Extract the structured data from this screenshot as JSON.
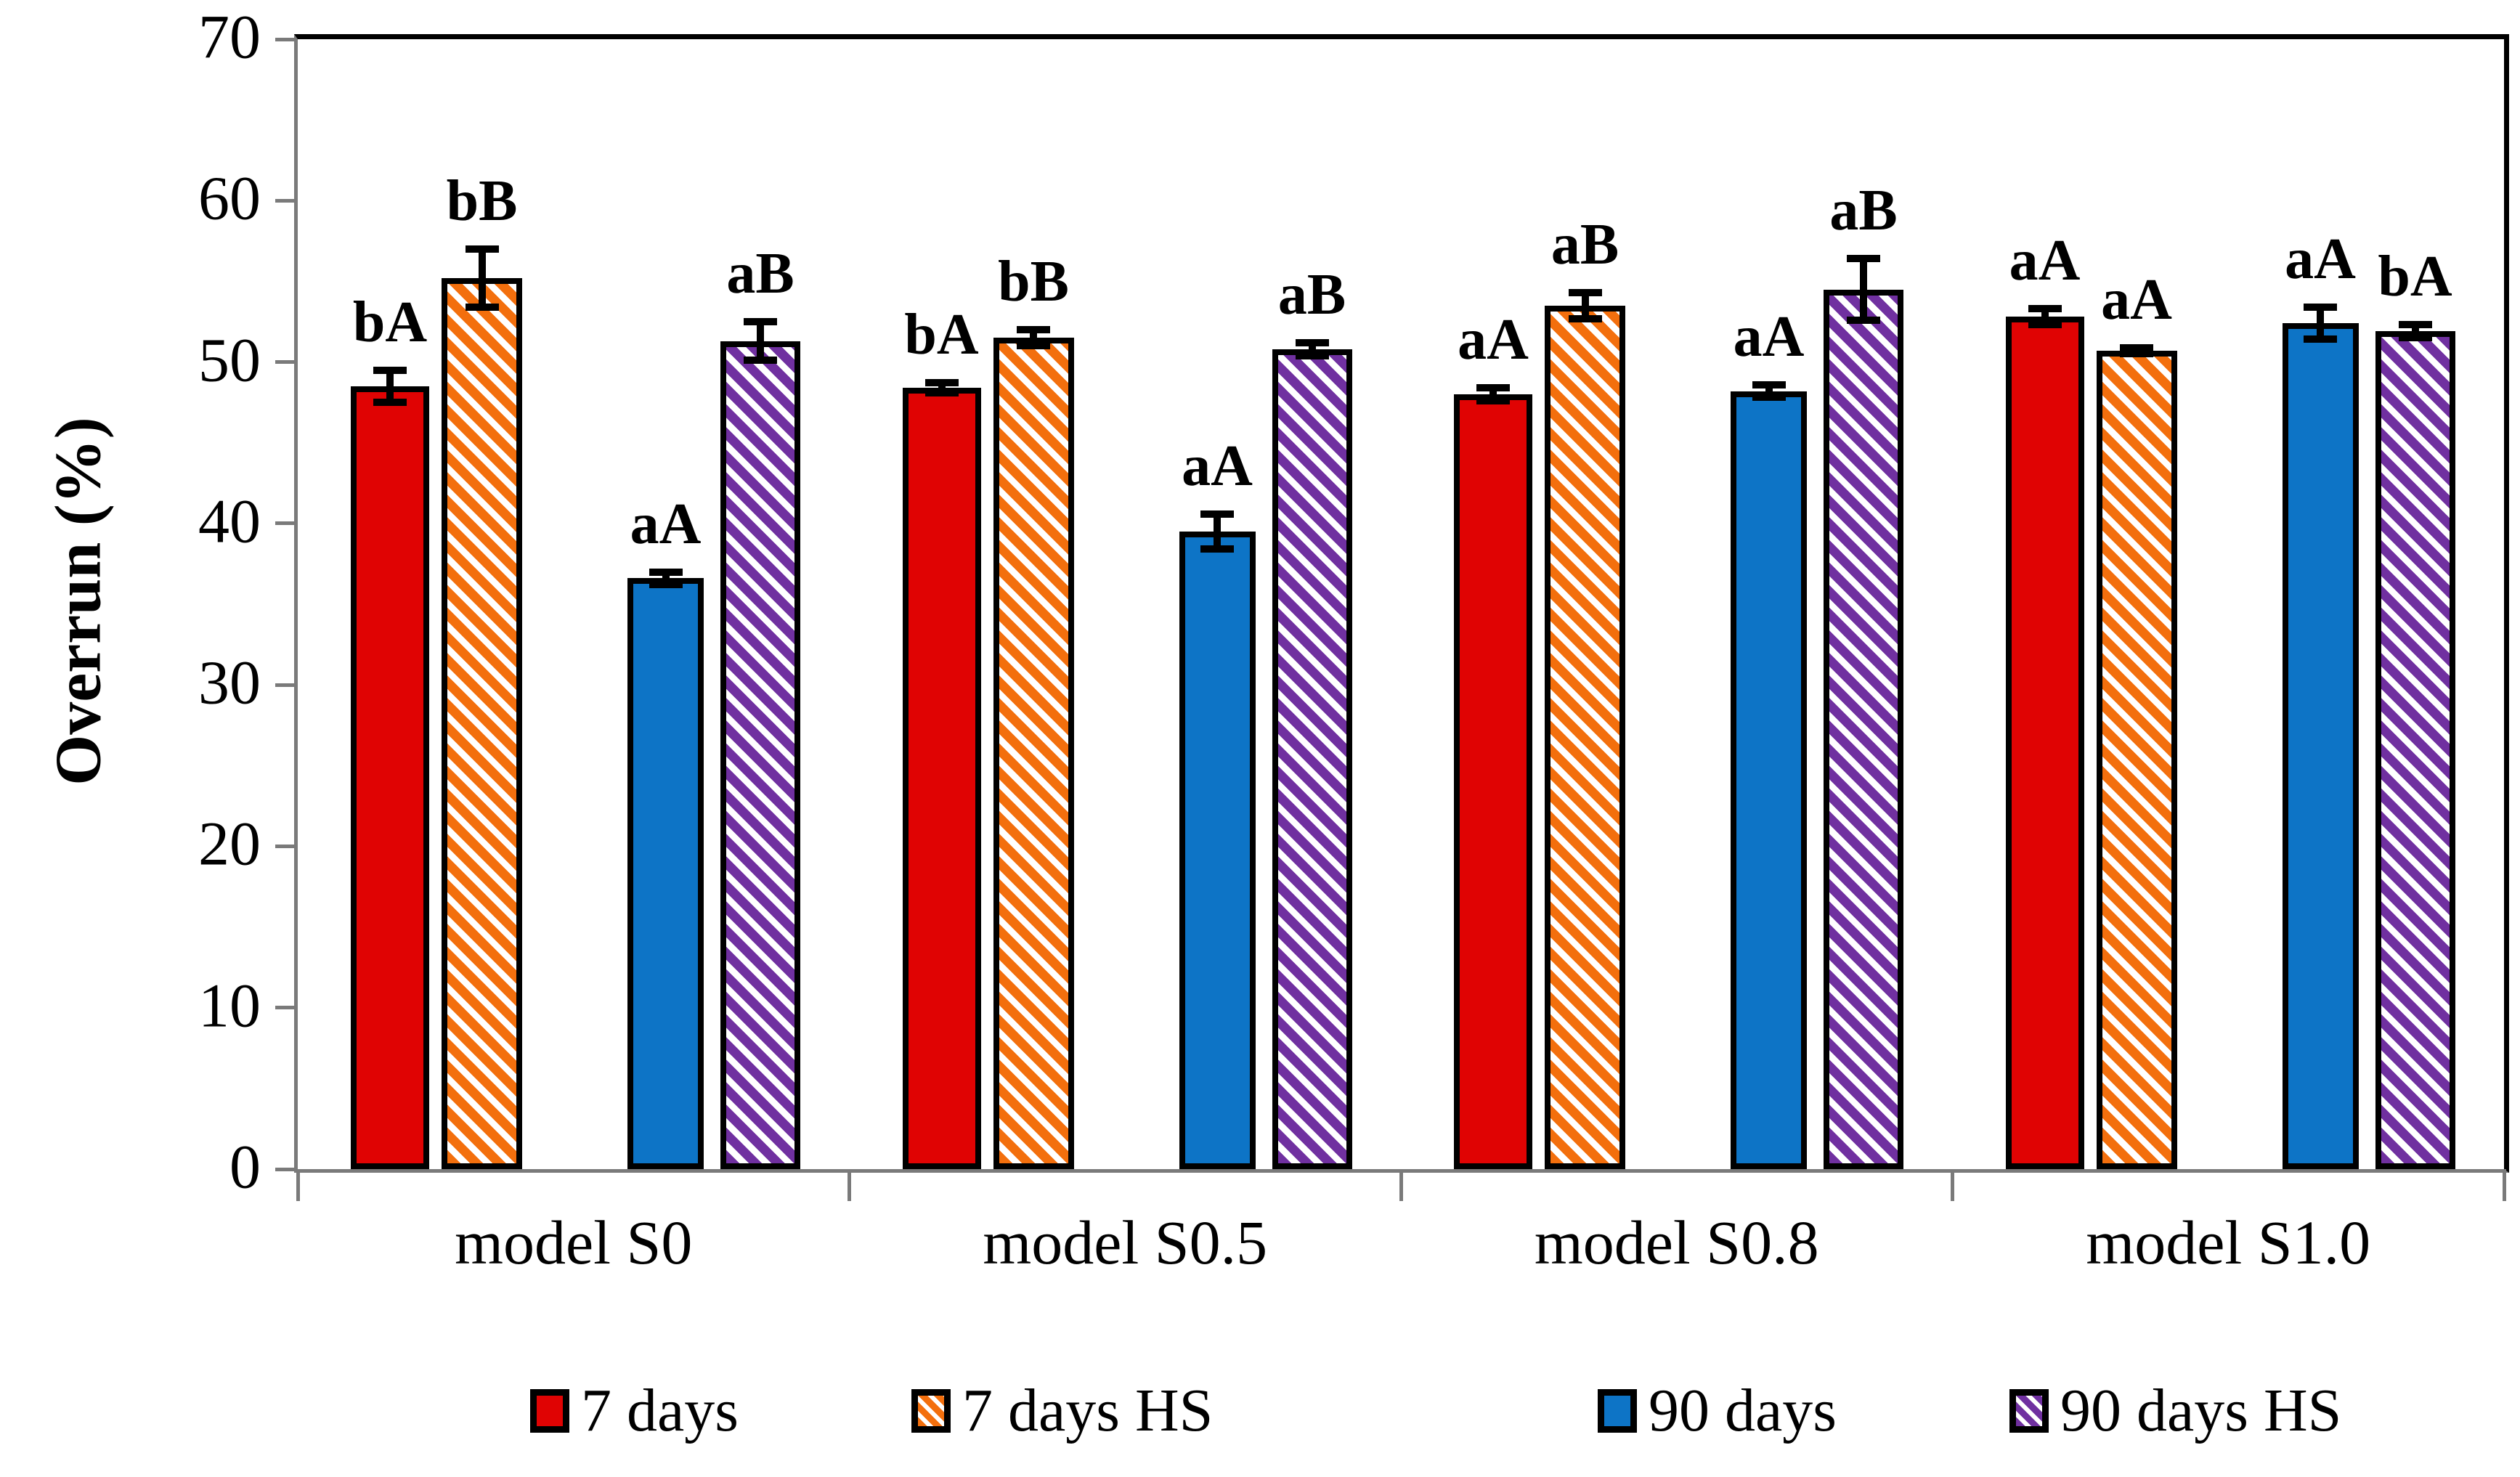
{
  "chart_data": {
    "type": "bar",
    "title": "",
    "xlabel": "",
    "ylabel": "Overrun (%)",
    "ylim": [
      0,
      70
    ],
    "yticks": [
      0,
      10,
      20,
      30,
      40,
      50,
      60,
      70
    ],
    "grid": false,
    "error_bars": true,
    "legend_position": "bottom",
    "categories": [
      "model S0",
      "model S0.5",
      "model S0.8",
      "model S1.0"
    ],
    "series": [
      {
        "name": "7 days",
        "color": "#e00303",
        "pattern": "solid",
        "values": [
          48.5,
          48.4,
          48.0,
          52.8
        ],
        "errors": [
          1.0,
          0.3,
          0.4,
          0.5
        ],
        "point_labels": [
          "bA",
          "bA",
          "aA",
          "aA"
        ]
      },
      {
        "name": "7 days HS",
        "color": "#f36f0d",
        "pattern": "diagonal-stripes",
        "values": [
          55.2,
          51.5,
          53.5,
          50.7
        ],
        "errors": [
          1.8,
          0.5,
          0.8,
          0.2
        ],
        "point_labels": [
          "bB",
          "bB",
          "aB",
          "aA"
        ]
      },
      {
        "name": "90 days",
        "color": "#0d74c6",
        "pattern": "solid",
        "values": [
          36.6,
          39.5,
          48.2,
          52.4
        ],
        "errors": [
          0.4,
          1.1,
          0.4,
          1.0
        ],
        "point_labels": [
          "aA",
          "aA",
          "aA",
          "aA"
        ]
      },
      {
        "name": "90 days HS",
        "color": "#7030a0",
        "pattern": "diagonal-stripes",
        "values": [
          51.3,
          50.8,
          54.5,
          51.9
        ],
        "errors": [
          1.2,
          0.4,
          1.9,
          0.4
        ],
        "point_labels": [
          "aB",
          "aB",
          "aB",
          "bA"
        ]
      }
    ],
    "legend": [
      "7 days",
      "7 days HS",
      "90 days",
      "90 days HS"
    ]
  }
}
